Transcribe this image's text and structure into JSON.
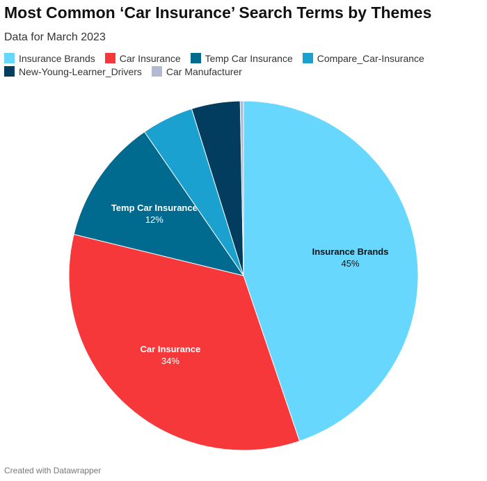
{
  "chart_data": {
    "type": "pie",
    "title": "Most Common ‘Car Insurance’ Search Terms by Themes",
    "subtitle": "Data for March 2023",
    "categories": [
      "Insurance Brands",
      "Car Insurance",
      "Temp Car Insurance",
      "Compare_Car-Insurance",
      "New-Young-Learner_Drivers",
      "Car Manufacturer"
    ],
    "values": [
      44.8,
      34,
      11.6,
      4.8,
      4.5,
      0.3
    ],
    "value_labels": [
      "45%",
      "34%",
      "12%",
      null,
      null,
      null
    ],
    "colors": [
      "#67d7fe",
      "#f7383b",
      "#016b8f",
      "#1aa1d0",
      "#023c5e",
      "#b3b9d1"
    ],
    "footer": "Created with Datawrapper"
  }
}
